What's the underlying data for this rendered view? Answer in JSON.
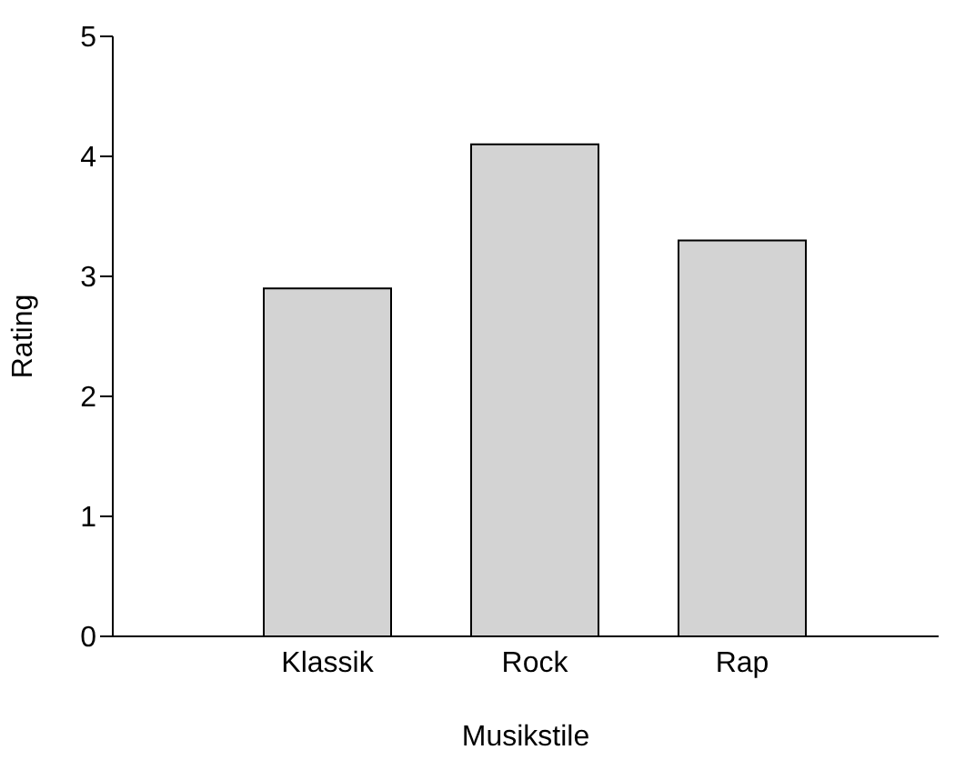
{
  "chart_data": {
    "type": "bar",
    "xlabel": "Musikstile",
    "ylabel": "Rating",
    "categories": [
      "Klassik",
      "Rock",
      "Rap"
    ],
    "values": [
      2.9,
      4.1,
      3.3
    ],
    "color": "#d3d3d3",
    "ylim": [
      0,
      5
    ],
    "yticks": [
      0,
      1,
      2,
      3,
      4,
      5
    ],
    "grid": false
  }
}
